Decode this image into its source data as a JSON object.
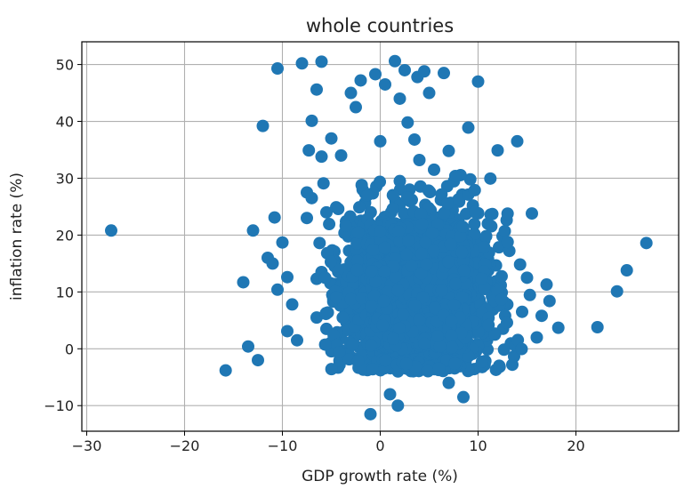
{
  "chart_data": {
    "type": "scatter",
    "title": "whole countries",
    "xlabel": "GDP growth rate (%)",
    "ylabel": "inflation rate (%)",
    "xlim": [
      -30.5,
      30.5
    ],
    "ylim": [
      -14.5,
      54
    ],
    "xticks": [
      -30,
      -20,
      -10,
      0,
      10,
      20
    ],
    "yticks": [
      -10,
      0,
      10,
      20,
      30,
      40,
      50
    ],
    "xtick_labels": [
      "−30",
      "−20",
      "−10",
      "0",
      "10",
      "20"
    ],
    "ytick_labels": [
      "−10",
      "0",
      "10",
      "20",
      "30",
      "40",
      "50"
    ],
    "grid": true,
    "marker_color": "#1f77b4",
    "series": [
      {
        "name": "countries",
        "x": [
          -27.5,
          -15.8,
          -14.0,
          -13.5,
          -13.0,
          -12.5,
          -12.0,
          -11.5,
          -11.0,
          -10.8,
          -10.5,
          -10.5,
          -10.0,
          -9.5,
          -9.5,
          -9.0,
          -8.5,
          -8.0,
          -7.5,
          -7.5,
          -7.3,
          -7.0,
          -7.0,
          -6.5,
          -6.5,
          -6.5,
          -6.2,
          -6.0,
          -6.0,
          -6.0,
          -5.8,
          -5.5,
          -5.5,
          -5.0,
          -5.0,
          -4.8,
          -4.5,
          -4.5,
          -4.0,
          -3.5,
          -3.0,
          -2.5,
          -2.0,
          -1.8,
          -1.5,
          -1.5,
          -1.0,
          -1.0,
          -0.5,
          0.0,
          0.0,
          0.5,
          1.0,
          1.5,
          1.8,
          2.0,
          2.0,
          2.0,
          2.5,
          2.8,
          3.0,
          3.5,
          3.8,
          4.0,
          4.0,
          4.5,
          5.0,
          5.0,
          5.5,
          6.0,
          6.5,
          7.0,
          7.0,
          7.5,
          8.0,
          8.5,
          9.0,
          9.2,
          10.0,
          10.5,
          11.0,
          12.0,
          12.5,
          13.5,
          14.0,
          14.5,
          15.0,
          15.5,
          16.0,
          16.5,
          17.0,
          17.3,
          18.2,
          22.2,
          24.2,
          25.2,
          27.2
        ],
        "y": [
          20.8,
          -3.8,
          11.7,
          0.4,
          20.8,
          -2.0,
          39.2,
          16.0,
          15.0,
          23.1,
          49.3,
          10.4,
          18.7,
          12.6,
          3.1,
          7.8,
          1.5,
          50.2,
          27.5,
          23.0,
          34.9,
          40.1,
          26.5,
          45.6,
          12.3,
          5.5,
          18.6,
          50.5,
          33.8,
          13.5,
          29.1,
          24.0,
          3.5,
          37.0,
          15.2,
          8.3,
          24.9,
          10.5,
          34.0,
          22.4,
          45.0,
          42.5,
          47.2,
          28.0,
          -3.0,
          12.0,
          -11.5,
          20.6,
          48.3,
          36.5,
          2.0,
          46.5,
          -8.0,
          50.6,
          -10.0,
          44.0,
          29.5,
          17.4,
          49.0,
          39.8,
          28.0,
          36.8,
          47.8,
          33.2,
          3.0,
          48.8,
          45.0,
          22.3,
          31.5,
          9.5,
          48.5,
          34.8,
          -6.0,
          20.0,
          26.0,
          -8.5,
          38.9,
          29.8,
          47.0,
          15.8,
          22.0,
          34.9,
          19.8,
          -2.8,
          36.5,
          6.5,
          12.5,
          23.8,
          2.0,
          5.8,
          11.3,
          8.4,
          3.7,
          3.8,
          10.1,
          13.8,
          18.6
        ]
      }
    ]
  }
}
